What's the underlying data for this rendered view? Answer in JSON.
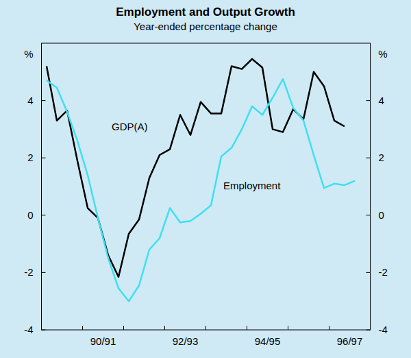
{
  "chart_data": {
    "type": "line",
    "title": "Employment and Output Growth",
    "subtitle": "Year-ended percentage change",
    "y_label": "%",
    "categories": [
      null,
      null,
      null,
      null,
      null,
      "90/91",
      null,
      null,
      null,
      null,
      null,
      null,
      null,
      "92/93",
      null,
      null,
      null,
      null,
      null,
      null,
      null,
      "94/95",
      null,
      null,
      null,
      null,
      null,
      null,
      null,
      "96/97",
      null,
      null
    ],
    "series": [
      {
        "name": "GDP(A)",
        "color": "#000000",
        "values": [
          5.2,
          3.3,
          3.65,
          1.9,
          0.25,
          -0.1,
          -1.4,
          -2.15,
          -0.65,
          -0.15,
          1.3,
          2.1,
          2.3,
          3.5,
          2.8,
          3.95,
          3.55,
          3.55,
          5.2,
          5.1,
          5.45,
          5.15,
          3.0,
          2.9,
          3.7,
          3.35,
          5.0,
          4.5,
          3.3,
          3.1,
          null,
          null
        ]
      },
      {
        "name": "Employment",
        "color": "#3fe0f0",
        "values": [
          4.7,
          4.45,
          3.6,
          2.6,
          1.4,
          -0.1,
          -1.5,
          -2.55,
          -3.0,
          -2.45,
          -1.2,
          -0.8,
          0.25,
          -0.25,
          -0.2,
          0.05,
          0.35,
          2.05,
          2.35,
          3.0,
          3.8,
          3.5,
          4.1,
          4.75,
          3.75,
          3.3,
          2.1,
          0.95,
          1.1,
          1.05,
          1.2,
          null
        ]
      }
    ],
    "ylim": [
      -4,
      6
    ],
    "yticks": [
      -4,
      -2,
      0,
      2,
      4
    ],
    "grid": false
  }
}
